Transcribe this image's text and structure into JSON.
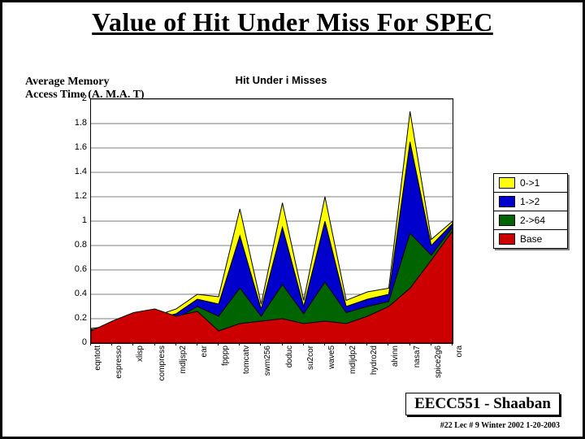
{
  "slide": {
    "title": "Value of Hit Under Miss For SPEC",
    "axis_label_line1": "Average Memory",
    "axis_label_line2": "Access Time (A. M.A. T)",
    "chart_title": "Hit Under i Misses",
    "footer_main": "EECC551 - Shaaban",
    "footer_sub": "#22  Lec # 9  Winter 2002   1-20-2003"
  },
  "chart": {
    "type": "area",
    "background_color": "#ffffff",
    "grid_color": "#000000",
    "ylim": [
      0,
      2
    ],
    "ytick_step": 0.2,
    "yticks": [
      "0",
      "0.2",
      "0.4",
      "0.6",
      "0.8",
      "1",
      "1.2",
      "1.4",
      "1.6",
      "1.8",
      "2"
    ],
    "categories": [
      "eqntott",
      "espresso",
      "xlisp",
      "compress",
      "mdljsp2",
      "ear",
      "fpppp",
      "tomcatv",
      "swm256",
      "doduc",
      "su2cor",
      "wave5",
      "mdljdp2",
      "hydro2d",
      "alvinn",
      "nasa7",
      "spice2g6",
      "ora"
    ],
    "series": [
      {
        "name": "0->1",
        "color": "#ffff00",
        "values": [
          0.12,
          0.14,
          0.18,
          0.22,
          0.28,
          0.4,
          0.38,
          1.1,
          0.32,
          1.15,
          0.35,
          1.2,
          0.35,
          0.42,
          0.45,
          1.9,
          0.85,
          1.0
        ]
      },
      {
        "name": "1->2",
        "color": "#0000cc",
        "values": [
          0.11,
          0.13,
          0.16,
          0.2,
          0.24,
          0.36,
          0.32,
          0.88,
          0.28,
          0.95,
          0.3,
          1.0,
          0.3,
          0.36,
          0.4,
          1.65,
          0.8,
          0.98
        ]
      },
      {
        "name": "2->64",
        "color": "#006400",
        "values": [
          0.1,
          0.12,
          0.14,
          0.18,
          0.2,
          0.3,
          0.22,
          0.45,
          0.22,
          0.48,
          0.24,
          0.5,
          0.25,
          0.3,
          0.34,
          0.9,
          0.72,
          0.95
        ]
      },
      {
        "name": "Base",
        "color": "#cc0000",
        "values": [
          0.1,
          0.18,
          0.25,
          0.28,
          0.22,
          0.26,
          0.1,
          0.16,
          0.18,
          0.2,
          0.16,
          0.18,
          0.16,
          0.22,
          0.3,
          0.45,
          0.68,
          0.92
        ]
      }
    ],
    "legend": {
      "position": "right",
      "items": [
        "0->1",
        "1->2",
        "2->64",
        "Base"
      ]
    },
    "label_fontsize": 11,
    "tick_fontsize": 10,
    "title_fontsize": 13,
    "line_width": 1
  }
}
